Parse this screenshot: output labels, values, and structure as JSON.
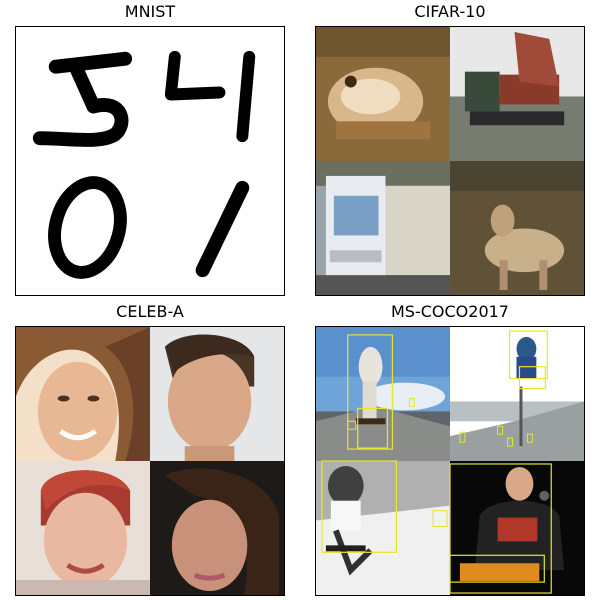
{
  "panels": [
    {
      "title": "MNIST",
      "content": "four handwritten digits 5, 4, 0, 1"
    },
    {
      "title": "CIFAR-10",
      "content": "four low-resolution photos: frog, truck, truck, deer"
    },
    {
      "title": "CELEB-A",
      "content": "four cropped face photos"
    },
    {
      "title": "MS-COCO2017",
      "content": "four photos with yellow bounding boxes"
    }
  ],
  "colors": {
    "bbox": "#e6e62e",
    "digit": "#000000",
    "background": "#ffffff"
  }
}
